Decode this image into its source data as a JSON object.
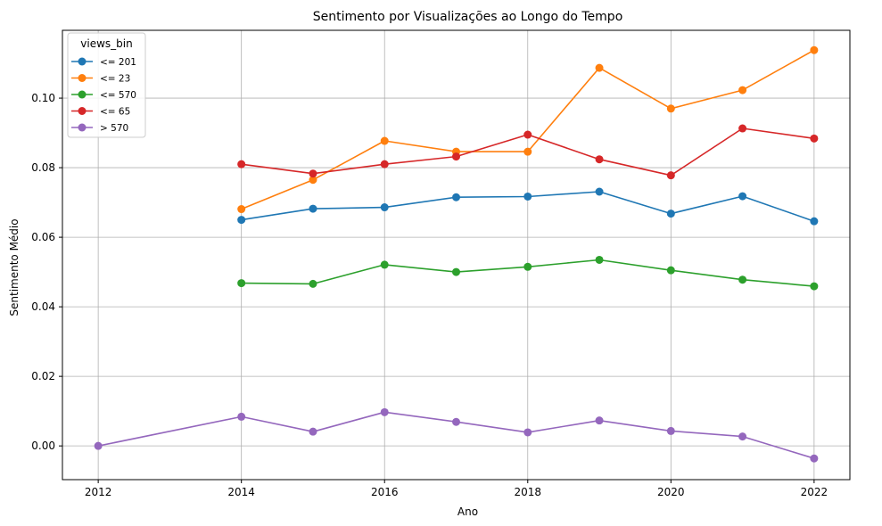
{
  "chart_data": {
    "type": "line",
    "title": "Sentimento por Visualizações ao Longo do Tempo",
    "xlabel": "Ano",
    "ylabel": "Sentimento Médio",
    "xlim": [
      2011.5,
      2022.5
    ],
    "ylim": [
      -0.0097,
      0.1195
    ],
    "xticks": [
      2012,
      2014,
      2016,
      2018,
      2020,
      2022
    ],
    "yticks": [
      0.0,
      0.02,
      0.04,
      0.06,
      0.08,
      0.1
    ],
    "ytick_labels": [
      "0.00",
      "0.02",
      "0.04",
      "0.06",
      "0.08",
      "0.10"
    ],
    "grid": true,
    "legend": {
      "title": "views_bin",
      "placement": "top-left"
    },
    "series": [
      {
        "name": "<= 201",
        "color": "#1f77b4",
        "x": [
          2014,
          2015,
          2016,
          2017,
          2018,
          2019,
          2020,
          2021,
          2022
        ],
        "y": [
          0.065,
          0.0682,
          0.0686,
          0.0715,
          0.0717,
          0.0731,
          0.0668,
          0.0718,
          0.0646
        ]
      },
      {
        "name": "<= 23",
        "color": "#ff7f0e",
        "x": [
          2014,
          2015,
          2016,
          2017,
          2018,
          2019,
          2020,
          2021,
          2022
        ],
        "y": [
          0.0681,
          0.0765,
          0.0877,
          0.0846,
          0.0846,
          0.1087,
          0.097,
          0.1023,
          0.1138
        ]
      },
      {
        "name": "<= 570",
        "color": "#2ca02c",
        "x": [
          2014,
          2015,
          2016,
          2017,
          2018,
          2019,
          2020,
          2021,
          2022
        ],
        "y": [
          0.0468,
          0.0466,
          0.0521,
          0.05,
          0.0515,
          0.0535,
          0.0505,
          0.0478,
          0.0459
        ]
      },
      {
        "name": "<= 65",
        "color": "#d62728",
        "x": [
          2014,
          2015,
          2016,
          2017,
          2018,
          2019,
          2020,
          2021,
          2022
        ],
        "y": [
          0.081,
          0.0783,
          0.081,
          0.0832,
          0.0895,
          0.0824,
          0.0778,
          0.0913,
          0.0884
        ]
      },
      {
        "name": "> 570",
        "color": "#9467bd",
        "x": [
          2012,
          2014,
          2015,
          2016,
          2017,
          2018,
          2019,
          2020,
          2021,
          2022
        ],
        "y": [
          0.0,
          0.0084,
          0.0041,
          0.0097,
          0.0069,
          0.0039,
          0.0073,
          0.0043,
          0.0027,
          -0.0036
        ]
      }
    ]
  }
}
